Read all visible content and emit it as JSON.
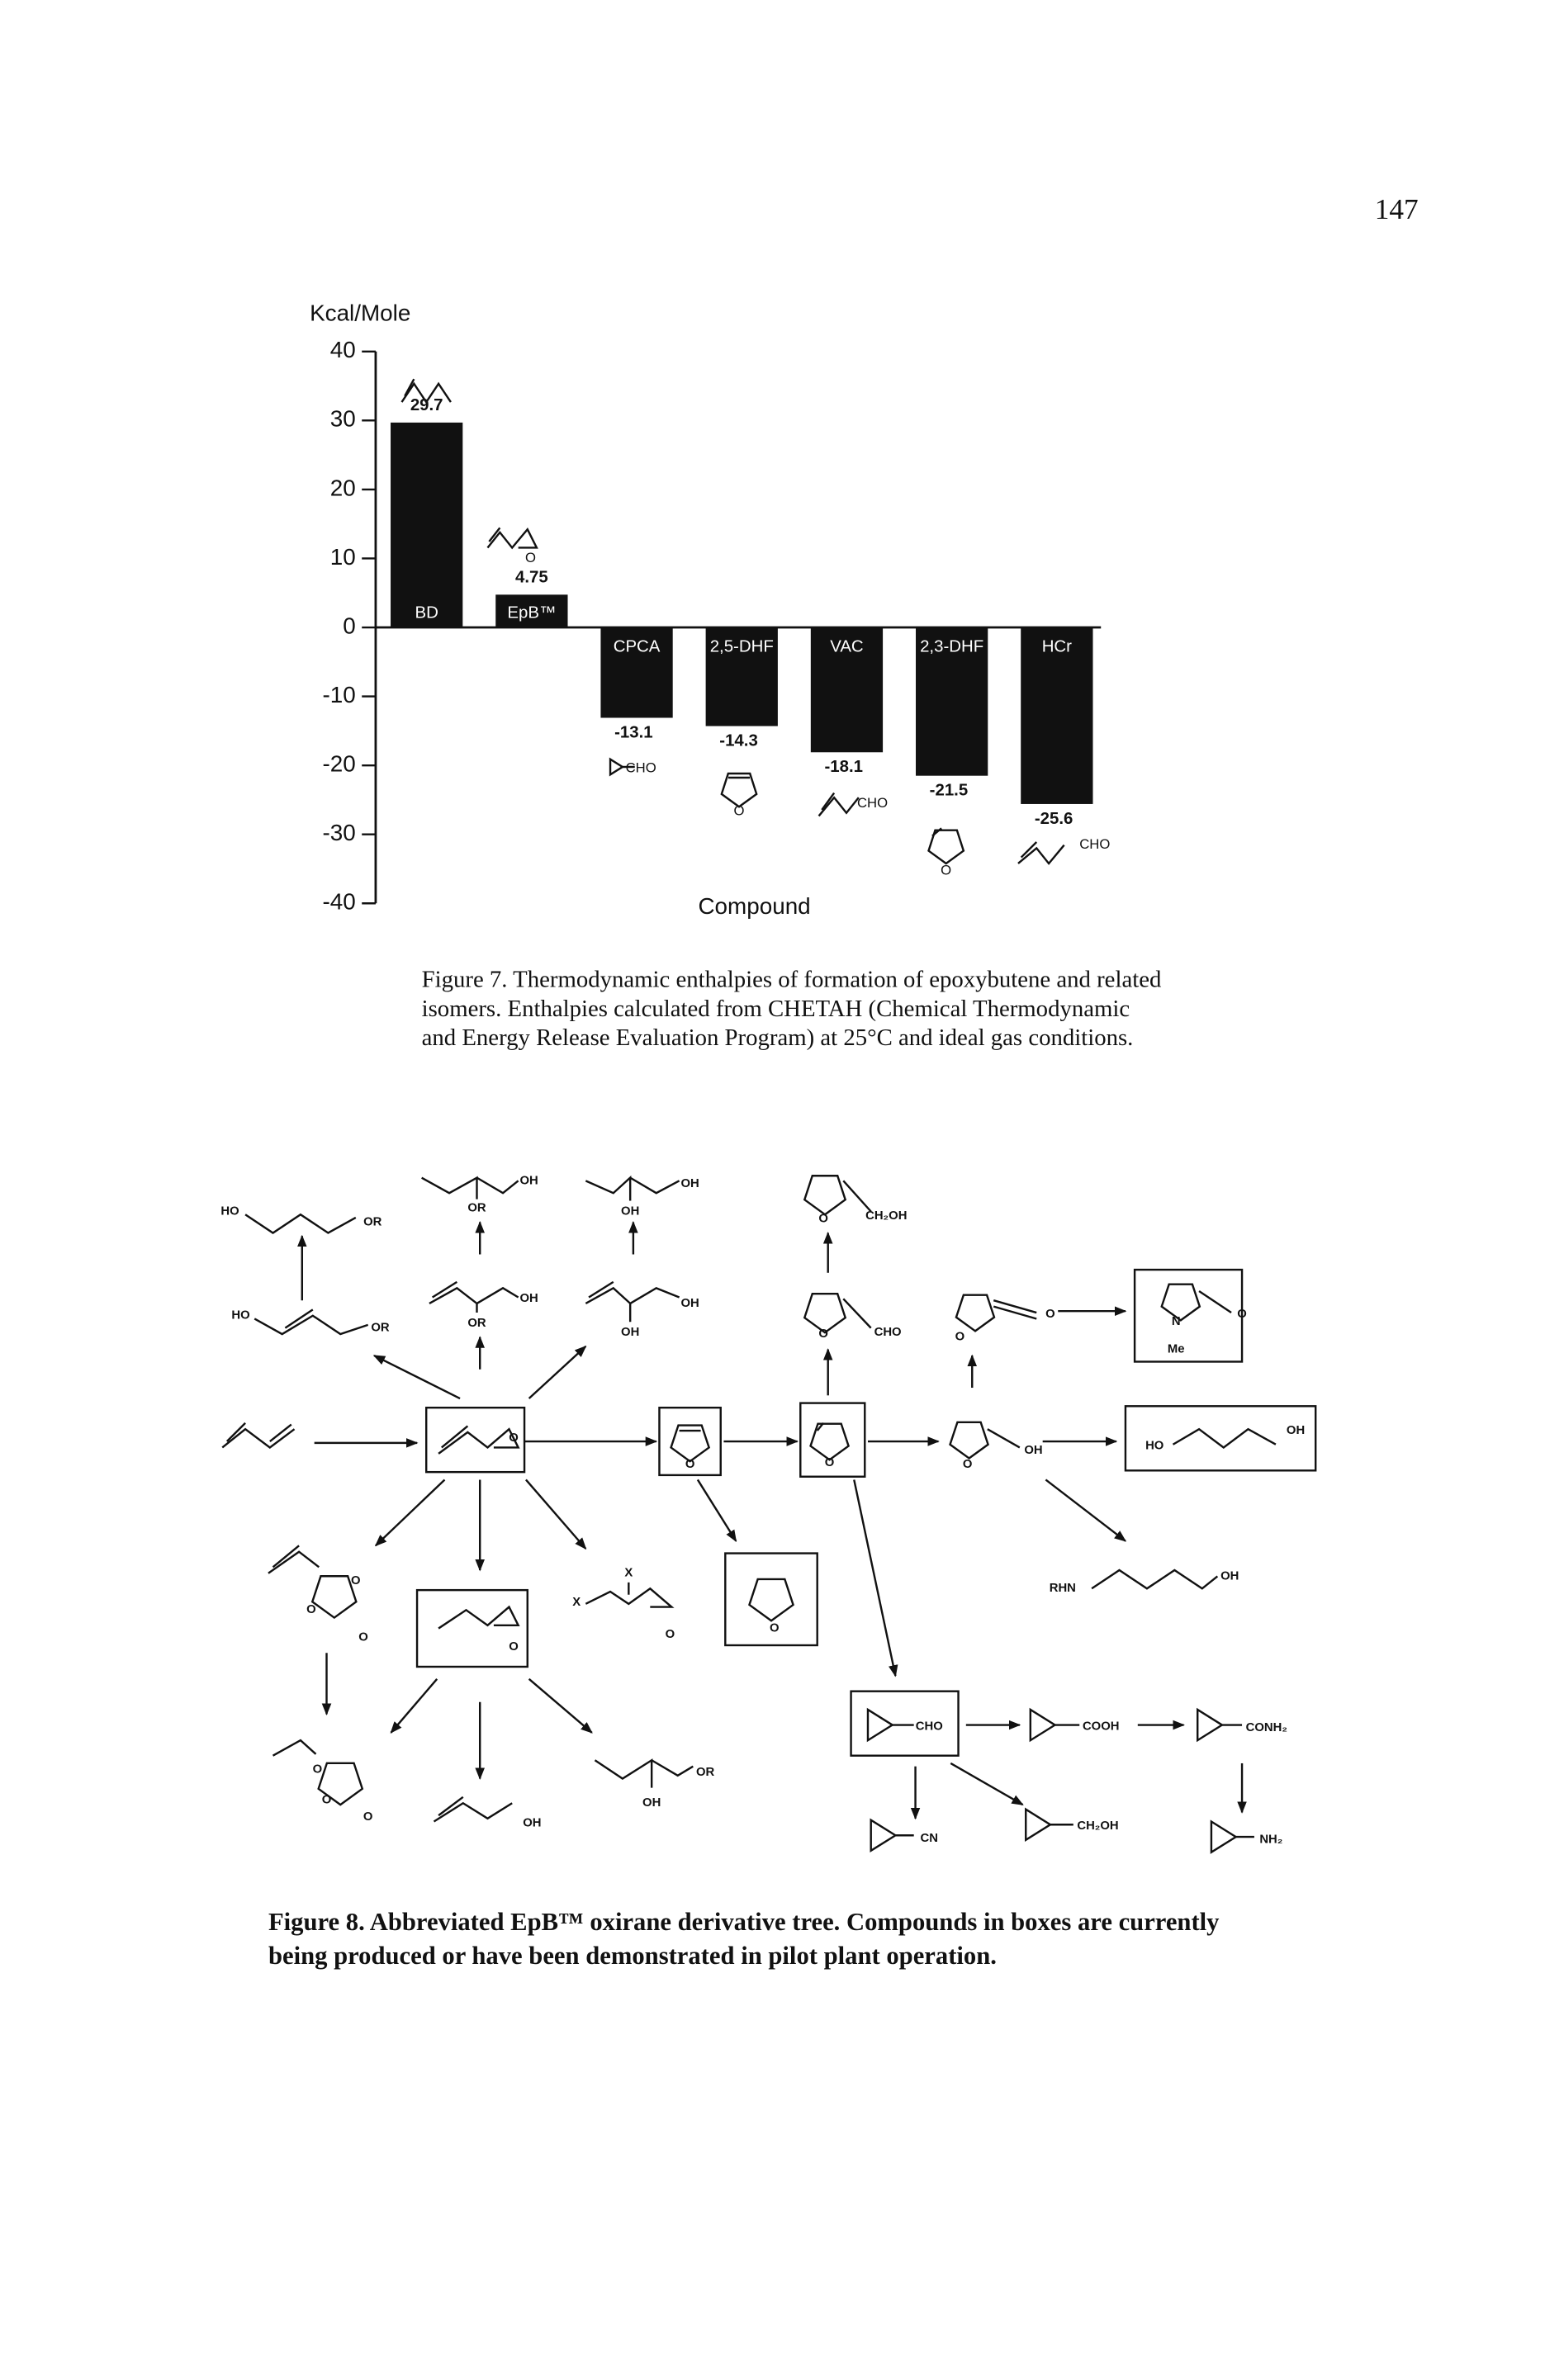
{
  "page_number": "147",
  "chart_data": {
    "type": "bar",
    "y_axis_label": "Kcal/Mole",
    "x_axis_label": "Compound",
    "categories": [
      "BD",
      "EpB™",
      "CPCA",
      "2,5-DHF",
      "VAC",
      "2,3-DHF",
      "HCr"
    ],
    "values": [
      29.7,
      4.75,
      -13.1,
      -14.3,
      -18.1,
      -21.5,
      -25.6
    ],
    "color": "#111111",
    "ylim": [
      -40,
      40
    ],
    "yticks": [
      -40,
      -30,
      -20,
      -10,
      0,
      10,
      20,
      30,
      40
    ],
    "annotations": [
      "O",
      "CHO",
      "O",
      "CHO",
      "O",
      "CHO"
    ]
  },
  "figure7_caption": [
    "Figure 7. Thermodynamic enthalpies of formation of epoxybutene and related",
    "isomers. Enthalpies calculated from CHETAH (Chemical Thermodynamic",
    "and Energy Release Evaluation Program) at 25°C and ideal gas conditions."
  ],
  "diagram": {
    "labels": [
      "HO",
      "OR",
      "OH",
      "OR",
      "OH",
      "OH",
      "O",
      "CH₂OH",
      "HO",
      "OR",
      "OH",
      "OR",
      "OH",
      "OH",
      "O",
      "CHO",
      "O",
      "O",
      "N",
      "Me",
      "O",
      "O",
      "O",
      "O",
      "O",
      "OH",
      "HO",
      "OH",
      "O",
      "O",
      "O",
      "X",
      "X",
      "O",
      "O",
      "RHN",
      "OH",
      "O",
      "CHO",
      "COOH",
      "CONH₂",
      "O",
      "O",
      "O",
      "OH",
      "OR",
      "OH",
      "CN",
      "CH₂OH",
      "NH₂"
    ]
  },
  "figure8_caption": [
    "Figure 8. Abbreviated EpB™ oxirane derivative tree. Compounds in boxes are currently",
    "being produced or have been demonstrated in pilot plant operation."
  ]
}
